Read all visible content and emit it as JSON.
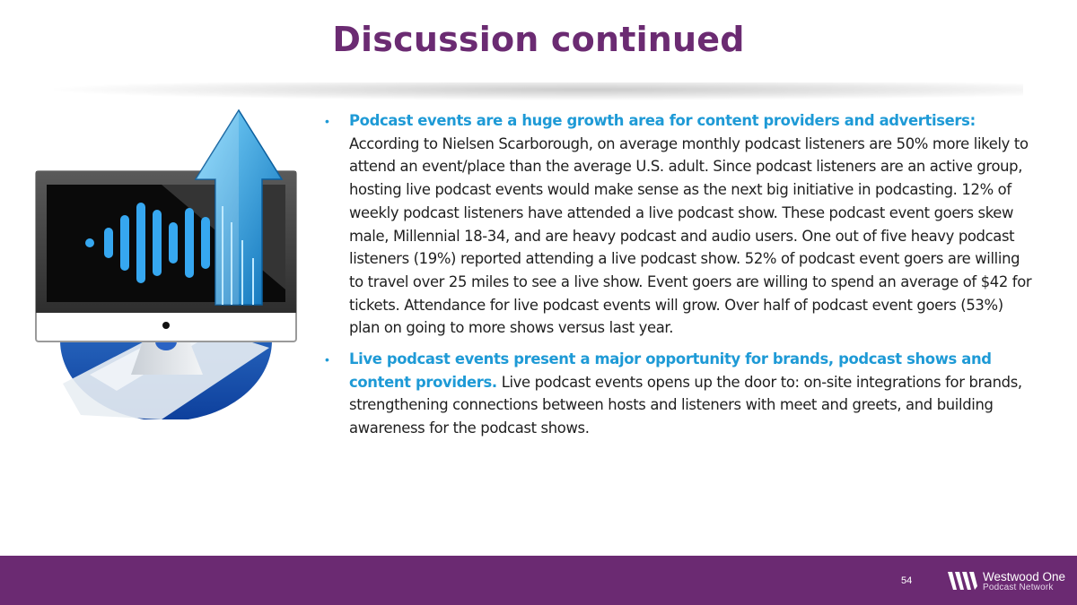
{
  "slide": {
    "title": "Discussion continued",
    "page_number": "54"
  },
  "bullets": [
    {
      "lead": "Podcast events are a huge growth area for content providers and advertisers",
      "lead_suffix": ":",
      "body": "According to Nielsen Scarborough, on average monthly podcast listeners are 50% more likely to attend an event/place than the average U.S. adult. Since podcast listeners are an active group, hosting live podcast events would make sense as the next big initiative in podcasting. 12% of weekly podcast listeners have attended a live podcast show. These podcast event goers skew male, Millennial 18-34, and are heavy podcast and audio users. One out of five heavy podcast listeners (19%) reported attending a live podcast show. 52% of podcast event goers are willing to travel over 25 miles to see a live show. Event goers are willing to spend an average of $42 for tickets. Attendance for live podcast events will grow. Over half of podcast event goers (53%) plan on going to more shows versus last year."
    },
    {
      "lead": "Live podcast events present a major opportunity for brands, podcast shows and content providers.",
      "lead_suffix": "",
      "body": "Live podcast events opens up the door to: on-site integrations for brands, strengthening connections between hosts and listeners with meet and greets, and building awareness for the podcast shows."
    }
  ],
  "logo": {
    "name": "Westwood One",
    "subtitle": "Podcast Network"
  },
  "colors": {
    "title": "#6b2b72",
    "accent_blue": "#1e9ad6",
    "footer": "#6b2a72"
  }
}
